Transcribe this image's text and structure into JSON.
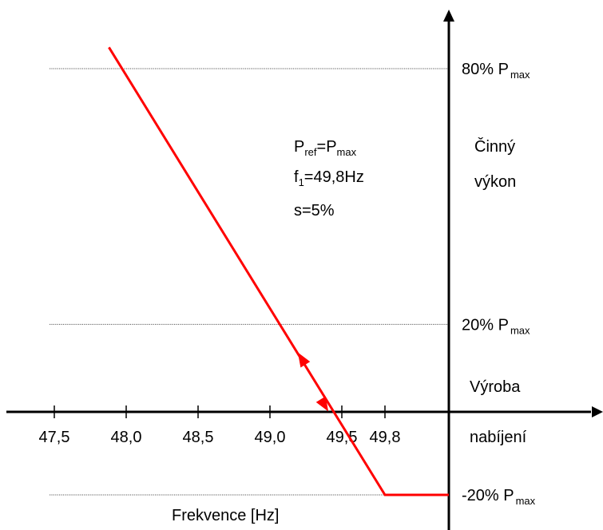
{
  "chart_data": {
    "type": "line",
    "xlabel": "Frekvence [Hz]",
    "y_axis_label": [
      "Činný",
      "výkon"
    ],
    "quadrant_labels": {
      "upper": "Výroba",
      "lower": "nabíjení"
    },
    "x_ticks": [
      {
        "value": 47.5,
        "label": "47,5"
      },
      {
        "value": 48.0,
        "label": "48,0"
      },
      {
        "value": 48.5,
        "label": "48,5"
      },
      {
        "value": 49.0,
        "label": "49,0"
      },
      {
        "value": 49.5,
        "label": "49,5"
      },
      {
        "value": 49.8,
        "label": "49,8"
      }
    ],
    "reference_lines": [
      {
        "value": 80,
        "text": "80% P",
        "sub": "max"
      },
      {
        "value": 20,
        "text": "20% P",
        "sub": "max"
      },
      {
        "value": -20,
        "text": "-20% P",
        "sub": "max"
      }
    ],
    "parameters": [
      {
        "main": "P",
        "sub": "ref",
        "rest": "=P",
        "sub2": "max"
      },
      {
        "main": "f",
        "sub": "1",
        "rest": "=49,8Hz",
        "sub2": ""
      },
      {
        "main": "s=5%",
        "sub": "",
        "rest": "",
        "sub2": ""
      }
    ],
    "series": [
      {
        "color": "#ff0000",
        "points": [
          [
            47.88,
            85
          ],
          [
            49.8,
            -20
          ],
          [
            50.0,
            -20
          ]
        ],
        "arrows": [
          {
            "x": 49.22,
            "y": 12,
            "direction": "up"
          },
          {
            "x": 49.38,
            "y": 1,
            "direction": "down"
          }
        ]
      }
    ],
    "xlim": [
      47.5,
      50.0
    ],
    "ylim": [
      -20,
      80
    ],
    "grid": false,
    "legend": "none"
  }
}
